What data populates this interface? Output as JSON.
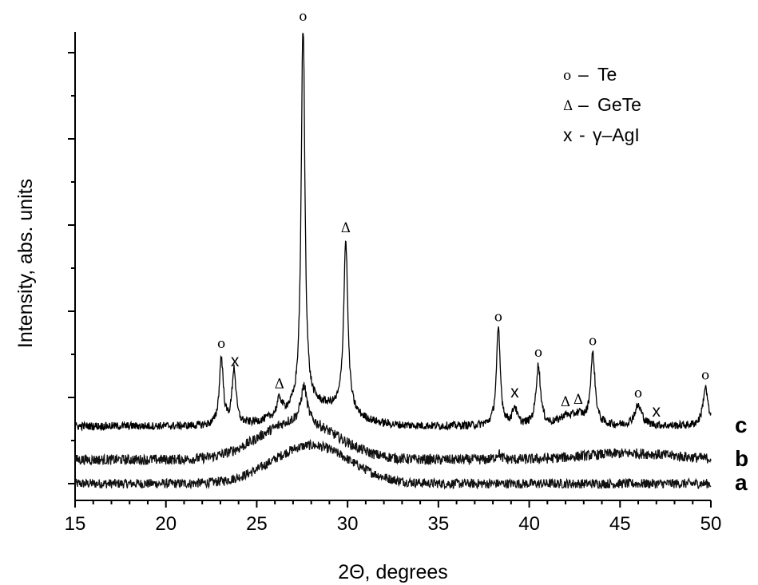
{
  "chart_data": {
    "type": "line",
    "xlabel": "2Θ, degrees",
    "ylabel": "Intensity, abs. units",
    "xlim": [
      15,
      50
    ],
    "x_ticks": [
      15,
      20,
      25,
      30,
      35,
      40,
      45,
      50
    ],
    "x_tick_labels": [
      "15",
      "20",
      "25",
      "30",
      "35",
      "40",
      "45",
      "50"
    ],
    "y_tick_labels_shown": false,
    "grid": false,
    "legend": {
      "placement": "top-right",
      "entries": [
        {
          "symbol": "o",
          "dash": "–",
          "label": "Te"
        },
        {
          "symbol": "Δ",
          "dash": "–",
          "label": "GeTe"
        },
        {
          "symbol": "x",
          "dash": "-",
          "label": "γ–AgI"
        }
      ]
    },
    "series": [
      {
        "name": "a",
        "baseline": 0.0,
        "noise": 0.12,
        "features": [
          {
            "type": "hump",
            "center": 28.0,
            "width": 3.0,
            "height": 0.48
          }
        ]
      },
      {
        "name": "b",
        "baseline": 0.3,
        "noise": 0.13,
        "features": [
          {
            "type": "hump",
            "center": 27.3,
            "width": 3.0,
            "height": 0.48
          },
          {
            "type": "peak",
            "center": 27.6,
            "width": 0.2,
            "height": 0.45
          },
          {
            "type": "peak",
            "center": 38.3,
            "width": 0.15,
            "height": 0.08
          },
          {
            "type": "hump",
            "center": 45.5,
            "width": 3.5,
            "height": 0.08
          }
        ]
      },
      {
        "name": "c",
        "baseline": 0.72,
        "noise": 0.1,
        "features": [
          {
            "type": "hump",
            "center": 28.3,
            "width": 2.5,
            "height": 0.25
          },
          {
            "type": "peak",
            "center": 23.05,
            "width": 0.13,
            "height": 0.85
          },
          {
            "type": "peak",
            "center": 23.75,
            "width": 0.13,
            "height": 0.7
          },
          {
            "type": "peak",
            "center": 26.25,
            "width": 0.15,
            "height": 0.2
          },
          {
            "type": "peak",
            "center": 27.55,
            "width": 0.12,
            "height": 4.9
          },
          {
            "type": "peak",
            "center": 29.9,
            "width": 0.14,
            "height": 2.15
          },
          {
            "type": "peak",
            "center": 38.3,
            "width": 0.13,
            "height": 1.2
          },
          {
            "type": "peak",
            "center": 39.2,
            "width": 0.15,
            "height": 0.22
          },
          {
            "type": "peak",
            "center": 40.5,
            "width": 0.15,
            "height": 0.75
          },
          {
            "type": "peak",
            "center": 42.0,
            "width": 0.4,
            "height": 0.1
          },
          {
            "type": "peak",
            "center": 42.7,
            "width": 0.4,
            "height": 0.12
          },
          {
            "type": "peak",
            "center": 43.5,
            "width": 0.15,
            "height": 0.88
          },
          {
            "type": "peak",
            "center": 46.0,
            "width": 0.25,
            "height": 0.25
          },
          {
            "type": "peak",
            "center": 49.7,
            "width": 0.17,
            "height": 0.48
          }
        ]
      }
    ],
    "annotations": [
      {
        "text": "o",
        "x": 23.05,
        "kind": "Te"
      },
      {
        "text": "x",
        "x": 23.8,
        "kind": "AgI"
      },
      {
        "text": "Δ",
        "x": 26.25,
        "kind": "GeTe"
      },
      {
        "text": "o",
        "x": 27.55,
        "kind": "Te"
      },
      {
        "text": "Δ",
        "x": 29.9,
        "kind": "GeTe"
      },
      {
        "text": "o",
        "x": 38.3,
        "kind": "Te"
      },
      {
        "text": "x",
        "x": 39.2,
        "kind": "AgI"
      },
      {
        "text": "o",
        "x": 40.5,
        "kind": "Te"
      },
      {
        "text": "Δ",
        "x": 42.0,
        "kind": "GeTe"
      },
      {
        "text": "Δ",
        "x": 42.7,
        "kind": "GeTe"
      },
      {
        "text": "o",
        "x": 43.5,
        "kind": "Te"
      },
      {
        "text": "o",
        "x": 46.0,
        "kind": "Te"
      },
      {
        "text": "x",
        "x": 47.0,
        "kind": "AgI"
      },
      {
        "text": "o",
        "x": 49.7,
        "kind": "Te"
      }
    ]
  }
}
